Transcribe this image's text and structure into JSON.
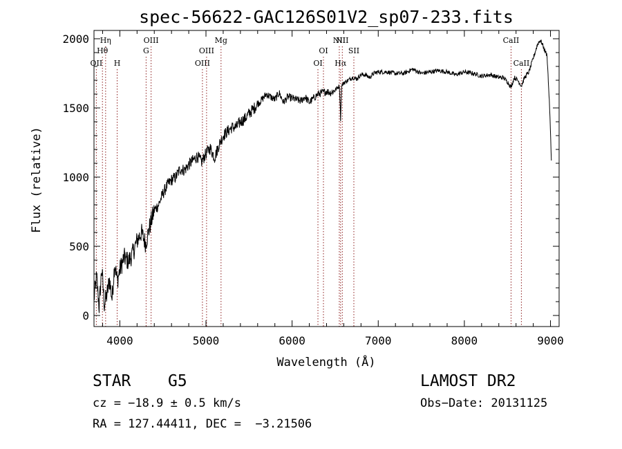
{
  "chart_data": {
    "type": "line",
    "title": "spec-56622-GAC126S01V2_sp07-233.fits",
    "xlabel": "Wavelength (Å)",
    "ylabel": "Flux (relative)",
    "xlim": [
      3700,
      9100
    ],
    "ylim": [
      -80,
      2060
    ],
    "grid": false,
    "xticks": [
      {
        "value": 4000,
        "label": "4000"
      },
      {
        "value": 5000,
        "label": "5000"
      },
      {
        "value": 6000,
        "label": "6000"
      },
      {
        "value": 7000,
        "label": "7000"
      },
      {
        "value": 8000,
        "label": "8000"
      },
      {
        "value": 9000,
        "label": "9000"
      }
    ],
    "yticks": [
      {
        "value": 0,
        "label": "0"
      },
      {
        "value": 500,
        "label": "500"
      },
      {
        "value": 1000,
        "label": "1000"
      },
      {
        "value": 1500,
        "label": "1500"
      },
      {
        "value": 2000,
        "label": "2000"
      }
    ],
    "series": [
      {
        "x": [
          3700,
          3730,
          3760,
          3790,
          3820,
          3850,
          3880,
          3910,
          3940,
          3970,
          4000,
          4050,
          4100,
          4150,
          4200,
          4250,
          4300,
          4350,
          4400,
          4450,
          4500,
          4550,
          4600,
          4650,
          4700,
          4750,
          4800,
          4850,
          4900,
          4950,
          5000,
          5050,
          5100,
          5150,
          5200,
          5250,
          5300,
          5350,
          5400,
          5450,
          5500,
          5550,
          5600,
          5650,
          5700,
          5750,
          5800,
          5850,
          5900,
          5950,
          6000,
          6050,
          6100,
          6150,
          6200,
          6250,
          6300,
          6350,
          6400,
          6450,
          6500,
          6550,
          6563,
          6575,
          6600,
          6650,
          6700,
          6750,
          6800,
          6850,
          6900,
          6950,
          7000,
          7100,
          7200,
          7300,
          7400,
          7500,
          7600,
          7700,
          7800,
          7900,
          8000,
          8100,
          8200,
          8300,
          8400,
          8450,
          8500,
          8542,
          8580,
          8620,
          8662,
          8700,
          8750,
          8800,
          8850,
          8880,
          8900,
          8930,
          8960,
          8990,
          9010
        ],
        "y": [
          120,
          280,
          60,
          340,
          80,
          150,
          260,
          120,
          380,
          250,
          330,
          420,
          390,
          450,
          540,
          600,
          520,
          650,
          760,
          800,
          880,
          940,
          980,
          1000,
          1060,
          1050,
          1090,
          1120,
          1150,
          1110,
          1170,
          1210,
          1140,
          1230,
          1300,
          1330,
          1360,
          1360,
          1400,
          1420,
          1460,
          1490,
          1530,
          1560,
          1600,
          1580,
          1560,
          1610,
          1540,
          1580,
          1570,
          1560,
          1550,
          1580,
          1540,
          1570,
          1600,
          1610,
          1620,
          1610,
          1630,
          1660,
          1420,
          1660,
          1680,
          1700,
          1720,
          1710,
          1740,
          1740,
          1720,
          1750,
          1760,
          1760,
          1750,
          1750,
          1780,
          1750,
          1760,
          1770,
          1760,
          1740,
          1760,
          1750,
          1730,
          1740,
          1720,
          1720,
          1690,
          1650,
          1720,
          1700,
          1660,
          1720,
          1760,
          1860,
          1960,
          1990,
          1970,
          1920,
          1880,
          1500,
          1120
        ]
      }
    ],
    "lines": [
      {
        "label": "OII",
        "x": 3727,
        "row": 3
      },
      {
        "label": "Hθ",
        "x": 3798,
        "row": 2
      },
      {
        "label": "Hη",
        "x": 3835,
        "row": 1
      },
      {
        "label": "H",
        "x": 3969,
        "row": 3
      },
      {
        "label": "G",
        "x": 4305,
        "row": 2
      },
      {
        "label": "OIII",
        "x": 4363,
        "row": 1
      },
      {
        "label": "OIII",
        "x": 4959,
        "row": 3
      },
      {
        "label": "OIII",
        "x": 5007,
        "row": 2
      },
      {
        "label": "Mg",
        "x": 5175,
        "row": 1
      },
      {
        "label": "OI",
        "x": 6300,
        "row": 3
      },
      {
        "label": "OI",
        "x": 6364,
        "row": 2
      },
      {
        "label": "NII",
        "x": 6548,
        "row": 1
      },
      {
        "label": "Hα",
        "x": 6563,
        "row": 3
      },
      {
        "label": "NII",
        "x": 6583,
        "row": 1
      },
      {
        "label": "SII",
        "x": 6717,
        "row": 2
      },
      {
        "label": "CaII",
        "x": 8542,
        "row": 1
      },
      {
        "label": "CaII",
        "x": 8662,
        "row": 3
      }
    ]
  },
  "info": {
    "object_class": "STAR",
    "subclass": "G5",
    "survey": "LAMOST DR2",
    "cz_line": "cz = −18.9 ± 0.5 km/s",
    "obs_date": "Obs−Date: 20131125",
    "coords": "RA = 127.44411, DEC =  −3.21506"
  }
}
